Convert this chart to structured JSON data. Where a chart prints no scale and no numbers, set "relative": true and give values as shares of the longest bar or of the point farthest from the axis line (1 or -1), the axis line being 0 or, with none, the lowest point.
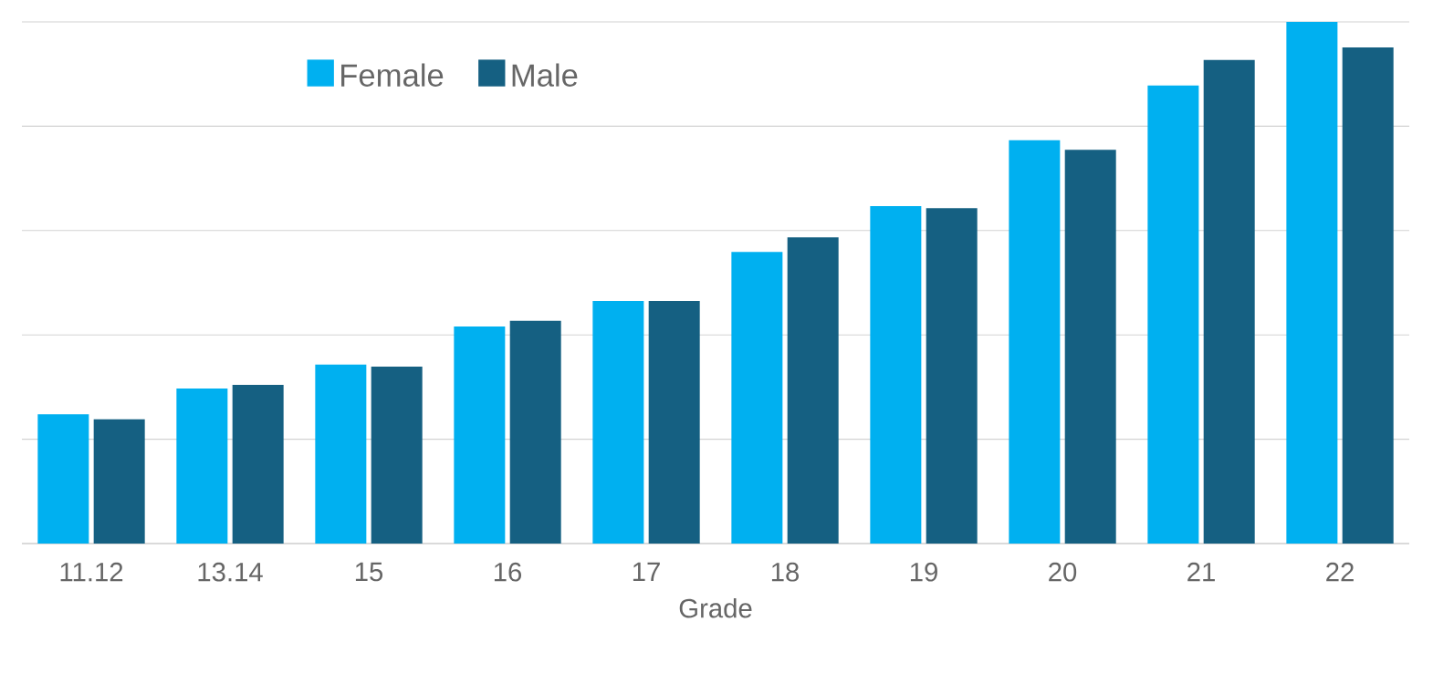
{
  "chart_data": {
    "type": "bar",
    "xlabel": "Grade",
    "relative": true,
    "grid": "y",
    "legend": "top left",
    "categories": [
      "11.12",
      "13.14",
      "15",
      "16",
      "17",
      "18",
      "19",
      "20",
      "21",
      "22"
    ],
    "series": [
      {
        "name": "Female",
        "color": "#00b0f0",
        "values": [
          0.248,
          0.297,
          0.343,
          0.416,
          0.465,
          0.559,
          0.647,
          0.773,
          0.878,
          1
        ]
      },
      {
        "name": "Male",
        "color": "#156082",
        "values": [
          0.238,
          0.304,
          0.339,
          0.427,
          0.465,
          0.587,
          0.643,
          0.755,
          0.927,
          0.951
        ]
      }
    ]
  }
}
